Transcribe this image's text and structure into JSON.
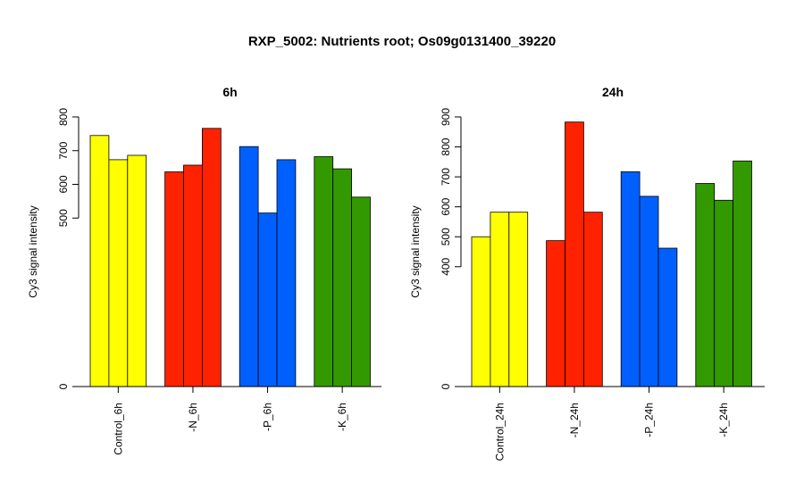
{
  "title": "RXP_5002: Nutrients root; Os09g0131400_39220",
  "chart_data": [
    {
      "type": "bar",
      "title": "6h",
      "ylabel": "Cy3 signal intensity",
      "xlabel": "",
      "ylim": [
        0,
        800
      ],
      "yticks": [
        0,
        500,
        600,
        700,
        800
      ],
      "categories": [
        "Control_6h",
        "-N_6h",
        "-P_6h",
        "-K_6h"
      ],
      "colors": [
        "#ffff00",
        "#ff2200",
        "#0060ff",
        "#339900"
      ],
      "replicates": [
        [
          745,
          673,
          686
        ],
        [
          637,
          657,
          766
        ],
        [
          712,
          515,
          673
        ],
        [
          682,
          646,
          562
        ]
      ]
    },
    {
      "type": "bar",
      "title": "24h",
      "ylabel": "Cy3 signal intensity",
      "xlabel": "",
      "ylim": [
        0,
        900
      ],
      "yticks": [
        0,
        400,
        500,
        600,
        700,
        800,
        900
      ],
      "categories": [
        "Control_24h",
        "-N_24h",
        "-P_24h",
        "-K_24h"
      ],
      "colors": [
        "#ffff00",
        "#ff2200",
        "#0060ff",
        "#339900"
      ],
      "replicates": [
        [
          500,
          582,
          582
        ],
        [
          487,
          883,
          582
        ],
        [
          717,
          635,
          462
        ],
        [
          678,
          622,
          753
        ]
      ]
    }
  ]
}
